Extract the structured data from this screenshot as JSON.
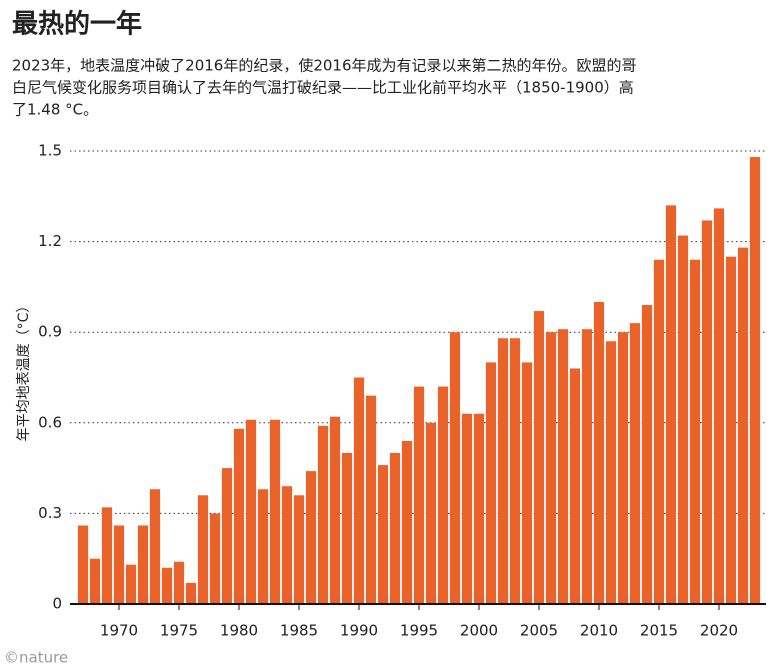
{
  "chart_data": {
    "type": "bar",
    "title": "最热的一年",
    "subtitle": [
      "2023年，地表温度冲破了2016年的纪录，使2016年成为有记录以来第二热的年份。欧盟的哥",
      "白尼气候变化服务项目确认了去年的气温打破纪录——比工业化前平均水平（1850-1900）高",
      "了1.48 °C。"
    ],
    "y_label": "年平均地表温度（°C）",
    "credit": "©nature",
    "x": [
      1967,
      1968,
      1969,
      1970,
      1971,
      1972,
      1973,
      1974,
      1975,
      1976,
      1977,
      1978,
      1979,
      1980,
      1981,
      1982,
      1983,
      1984,
      1985,
      1986,
      1987,
      1988,
      1989,
      1990,
      1991,
      1992,
      1993,
      1994,
      1995,
      1996,
      1997,
      1998,
      1999,
      2000,
      2001,
      2002,
      2003,
      2004,
      2005,
      2006,
      2007,
      2008,
      2009,
      2010,
      2011,
      2012,
      2013,
      2014,
      2015,
      2016,
      2017,
      2018,
      2019,
      2020,
      2021,
      2022,
      2023
    ],
    "values": [
      0.26,
      0.15,
      0.32,
      0.26,
      0.13,
      0.26,
      0.38,
      0.12,
      0.14,
      0.07,
      0.36,
      0.3,
      0.45,
      0.58,
      0.61,
      0.38,
      0.61,
      0.39,
      0.36,
      0.44,
      0.59,
      0.62,
      0.5,
      0.75,
      0.69,
      0.46,
      0.5,
      0.54,
      0.72,
      0.6,
      0.72,
      0.9,
      0.63,
      0.63,
      0.8,
      0.88,
      0.88,
      0.8,
      0.97,
      0.9,
      0.91,
      0.78,
      0.91,
      1.0,
      0.87,
      0.9,
      0.93,
      0.99,
      1.14,
      1.32,
      1.22,
      1.14,
      1.27,
      1.31,
      1.15,
      1.18,
      1.48
    ],
    "color": "#e8622a",
    "xlim": [
      1966,
      2024
    ],
    "xticks": [
      1970,
      1975,
      1980,
      1985,
      1990,
      1995,
      2000,
      2005,
      2010,
      2015,
      2020
    ],
    "ylim": [
      0,
      1.5
    ],
    "yticks": [
      0,
      0.3,
      0.6,
      0.9,
      1.2,
      1.5
    ],
    "grid": true
  }
}
